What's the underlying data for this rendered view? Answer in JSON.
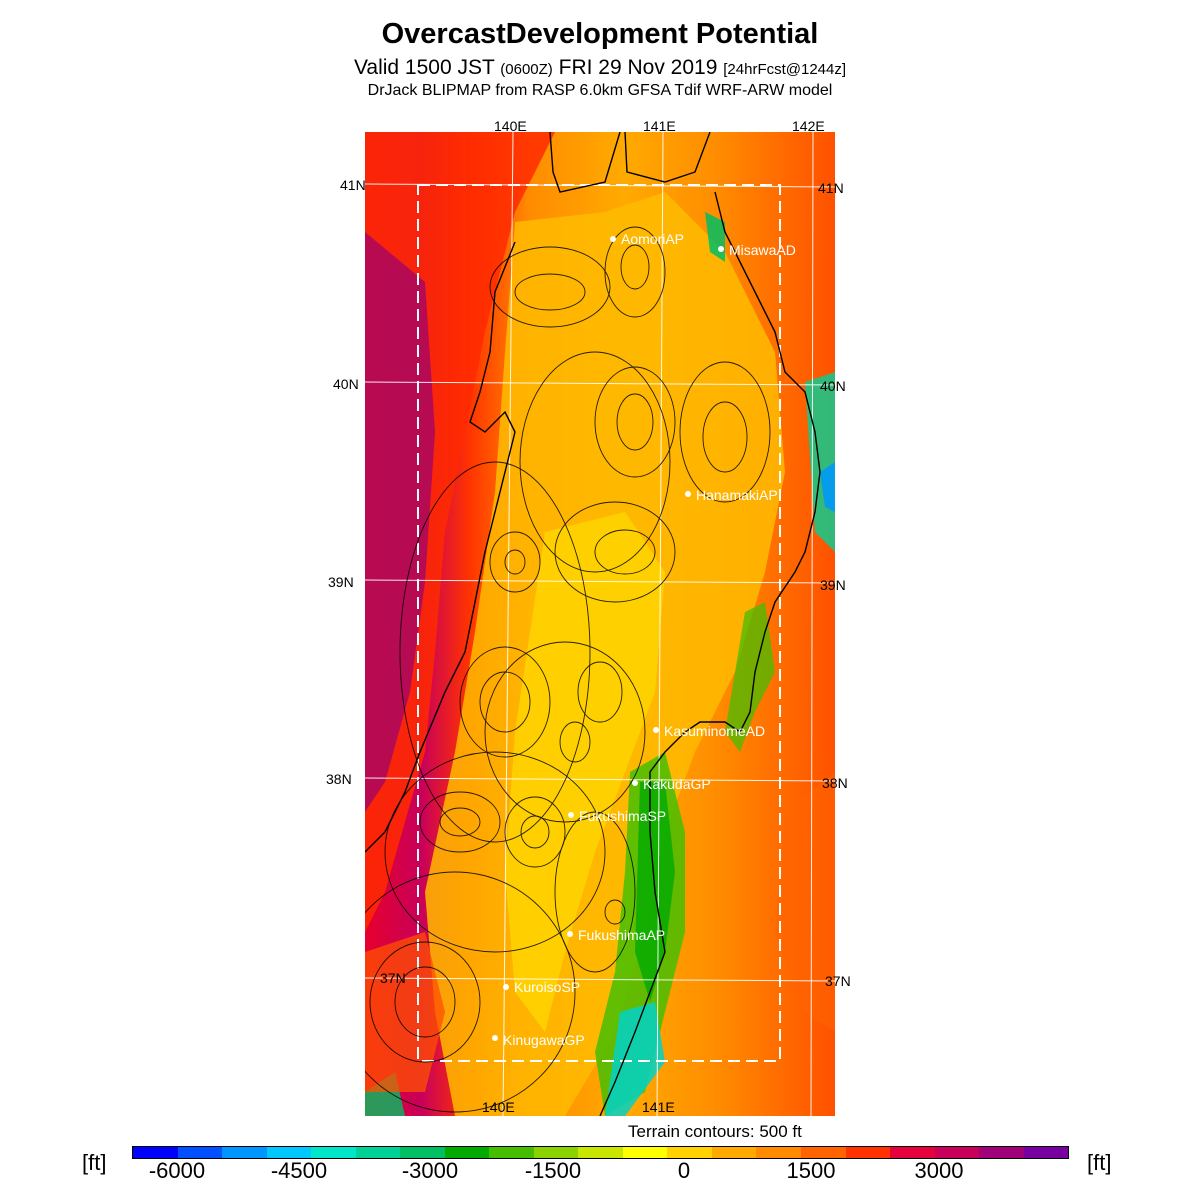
{
  "header": {
    "title": "OvercastDevelopment Potential",
    "valid_main": "Valid 1500 JST",
    "valid_utc": "(0600Z)",
    "valid_date": "FRI 29 Nov 2019",
    "forecast": "[24hrFcst@1244z]",
    "model": "DrJack BLIPMAP from RASP 6.0km GFSA Tdif WRF-ARW model"
  },
  "map": {
    "lon_labels_top": [
      "140E",
      "141E",
      "142E"
    ],
    "lon_labels_bottom": [
      "140E",
      "141E"
    ],
    "lat_labels": [
      "41N",
      "40N",
      "39N",
      "38N",
      "37N"
    ],
    "terrain_note": "Terrain contours: 500 ft",
    "stations": [
      {
        "name": "AomoriAP"
      },
      {
        "name": "MisawaAD"
      },
      {
        "name": "HanamakiAP"
      },
      {
        "name": "KasuminomeAD"
      },
      {
        "name": "KakudaGP"
      },
      {
        "name": "FukushimaSP"
      },
      {
        "name": "FukushimaAP"
      },
      {
        "name": "KuroisoSP"
      },
      {
        "name": "KinugawaGP"
      }
    ]
  },
  "colorbar": {
    "unit_left": "[ft]",
    "unit_right": "[ft]",
    "tick_labels": [
      "-6000",
      "-4500",
      "-3000",
      "-1500",
      "0",
      "1500",
      "3000"
    ],
    "colors": [
      "#0000ff",
      "#0050ff",
      "#0096ff",
      "#00c8ff",
      "#00e6c8",
      "#00d296",
      "#00be64",
      "#00aa00",
      "#46be00",
      "#8cd200",
      "#c8e600",
      "#ffff00",
      "#ffd200",
      "#ffaa00",
      "#ff8c00",
      "#ff6400",
      "#ff3200",
      "#e6003c",
      "#c8005a",
      "#a00078",
      "#7800a0"
    ]
  }
}
